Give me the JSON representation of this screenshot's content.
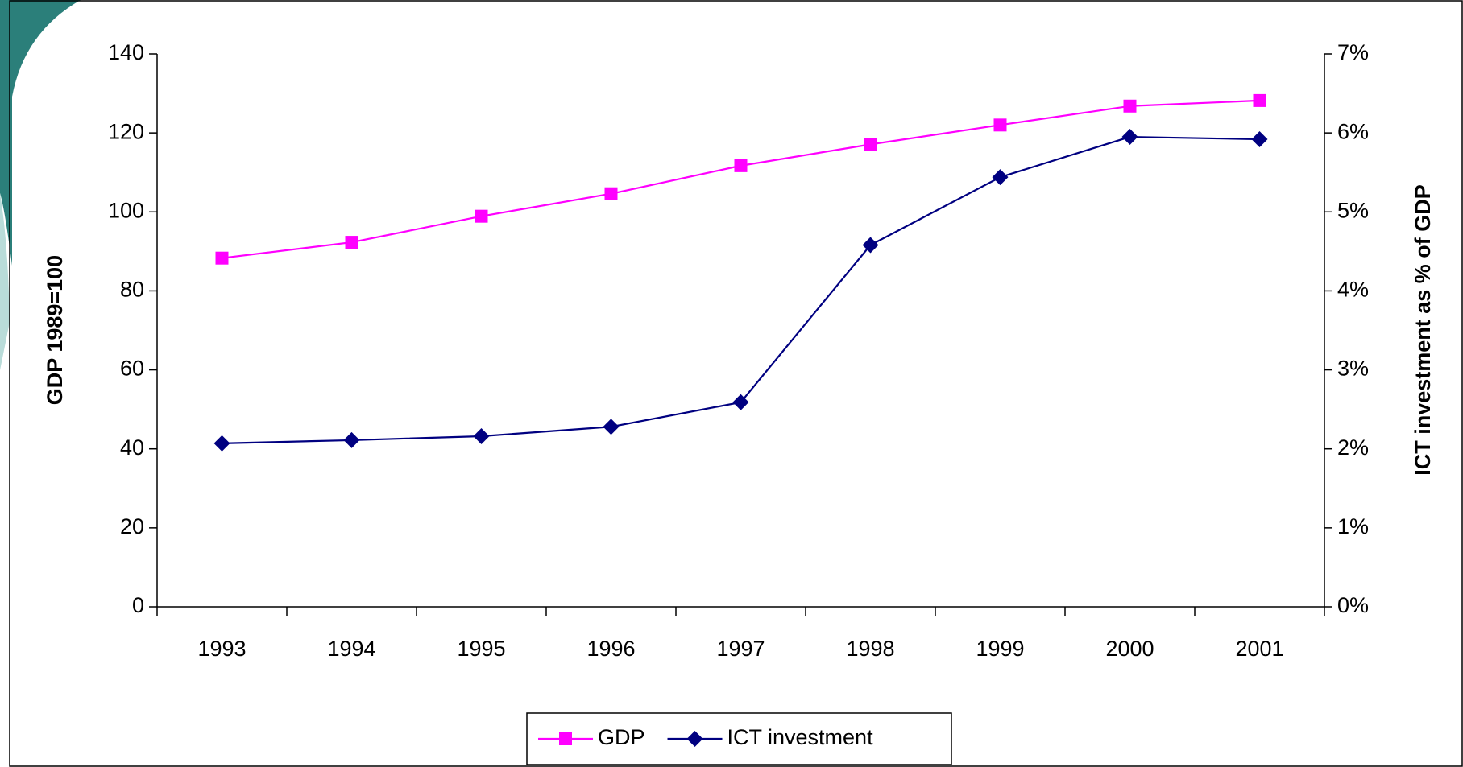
{
  "chart_data": {
    "type": "line",
    "categories": [
      "1993",
      "1994",
      "1995",
      "1996",
      "1997",
      "1998",
      "1999",
      "2000",
      "2001"
    ],
    "ylabel": "GDP 1989=100",
    "y2label": "ICT investment as % of GDP",
    "ylim": [
      0,
      140
    ],
    "yticks": [
      0,
      20,
      40,
      60,
      80,
      100,
      120,
      140
    ],
    "y2lim": [
      0,
      7
    ],
    "y2ticks": [
      {
        "value": 0,
        "label": "0%"
      },
      {
        "value": 1,
        "label": "1%"
      },
      {
        "value": 2,
        "label": "2%"
      },
      {
        "value": 3,
        "label": "3%"
      },
      {
        "value": 4,
        "label": "4%"
      },
      {
        "value": 5,
        "label": "5%"
      },
      {
        "value": 6,
        "label": "6%"
      },
      {
        "value": 7,
        "label": "7%"
      }
    ],
    "legend": "bottom",
    "series": [
      {
        "name": "GDP",
        "color": "#ff00ff",
        "marker": "square",
        "values": [
          88.3,
          92.3,
          98.9,
          104.6,
          111.7,
          117.1,
          122,
          126.8,
          128.2
        ]
      },
      {
        "name": "ICT investment",
        "color": "#000080",
        "marker": "diamond",
        "axis": "y2",
        "values": [
          2.07,
          2.11,
          2.16,
          2.28,
          2.59,
          4.58,
          5.44,
          5.95,
          5.92
        ]
      }
    ]
  }
}
